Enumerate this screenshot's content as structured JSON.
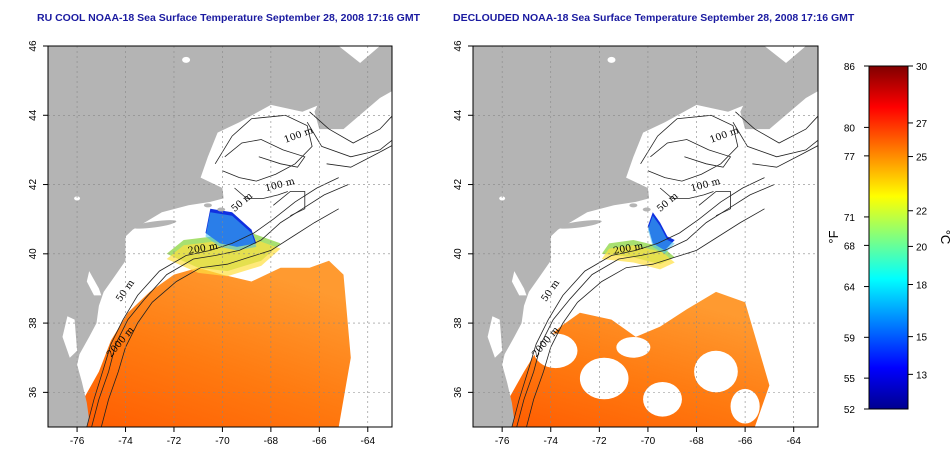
{
  "panels": [
    {
      "title": "RU COOL NOAA-18 Sea Surface Temperature September 28, 2008 17:16 GMT",
      "contour_labels": [
        "100 m",
        "100 m",
        "50 m",
        "200 m",
        "50 m",
        "2000 m"
      ]
    },
    {
      "title": "DECLOUDED NOAA-18 Sea Surface Temperature September 28, 2008 17:16 GMT",
      "contour_labels": [
        "100 m",
        "100 m",
        "50 m",
        "200 m",
        "50 m",
        "2000 m"
      ]
    }
  ],
  "map": {
    "lon_ticks": [
      "-76",
      "-74",
      "-72",
      "-70",
      "-68",
      "-66",
      "-64"
    ],
    "lat_ticks": [
      "36",
      "38",
      "40",
      "42",
      "44",
      "46"
    ],
    "land_color": "#b4b4b4",
    "grid": "dashed"
  },
  "colorbar": {
    "f_label": "°F",
    "c_label": "°C",
    "f_ticks": [
      "86",
      "80",
      "77",
      "71",
      "68",
      "64",
      "59",
      "55",
      "52"
    ],
    "c_ticks": [
      "30",
      "27",
      "25",
      "22",
      "20",
      "18",
      "15",
      "13"
    ],
    "colors": [
      "#00008f",
      "#0000ff",
      "#0080ff",
      "#00ffff",
      "#80ff80",
      "#ffff00",
      "#ff8000",
      "#ff0000",
      "#800000"
    ]
  }
}
